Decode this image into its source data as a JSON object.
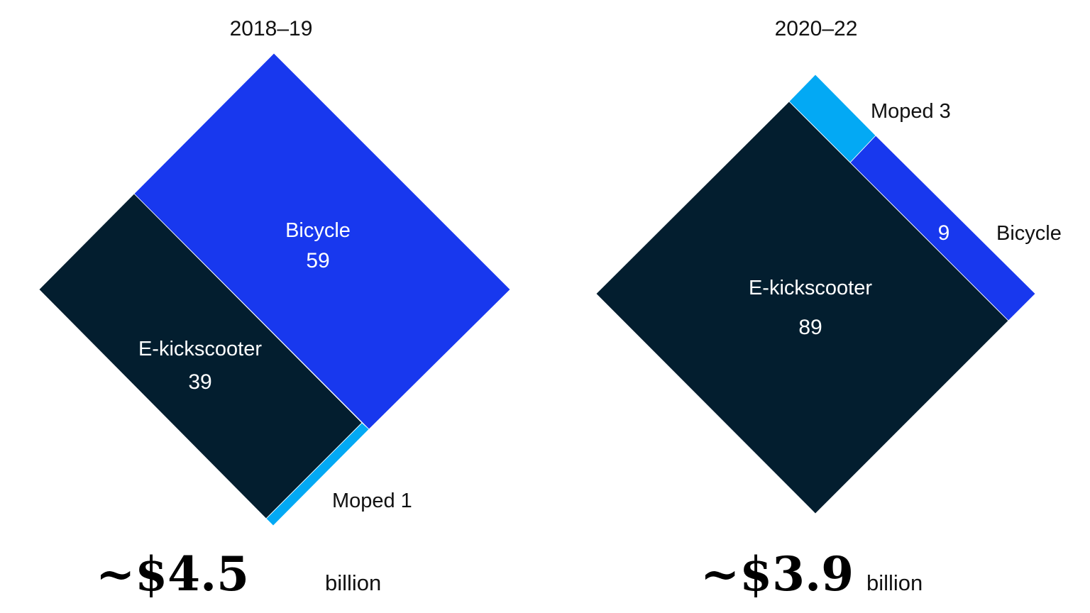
{
  "colors": {
    "E-kickscooter": "#031E2F",
    "Bicycle": "#1838EE",
    "Moped": "#03A9F4"
  },
  "chart_data": [
    {
      "type": "treemap",
      "title": "2018–19",
      "unit": "%",
      "segments": [
        {
          "name": "E-kickscooter",
          "label": "E-kickscooter",
          "value": 39,
          "value_label": "39"
        },
        {
          "name": "Bicycle",
          "label": "Bicycle",
          "value": 59,
          "value_label": "59"
        },
        {
          "name": "Moped",
          "label": "Moped",
          "value": 1,
          "value_label": "1"
        }
      ],
      "total": {
        "value": "~$4.5",
        "unit": "billion"
      }
    },
    {
      "type": "treemap",
      "title": "2020–22",
      "unit": "%",
      "segments": [
        {
          "name": "E-kickscooter",
          "label": "E-kickscooter",
          "value": 89,
          "value_label": "89"
        },
        {
          "name": "Bicycle",
          "label": "Bicycle",
          "value": 9,
          "value_label": "9"
        },
        {
          "name": "Moped",
          "label": "Moped",
          "value": 3,
          "value_label": "3"
        }
      ],
      "total": {
        "value": "~$3.9",
        "unit": "billion"
      }
    }
  ]
}
